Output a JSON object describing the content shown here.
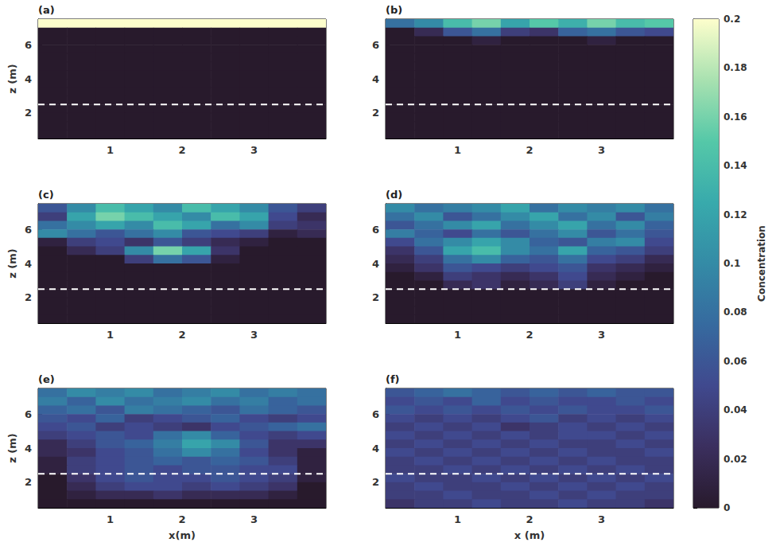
{
  "chart_data": {
    "type": "heatmap",
    "xlim": [
      0,
      4
    ],
    "ylim": [
      0.5,
      7.5
    ],
    "xticks": [
      1,
      2,
      3
    ],
    "yticks": [
      2,
      4,
      6
    ],
    "x_edges": [
      0,
      0.4,
      0.8,
      1.2,
      1.6,
      2,
      2.4,
      2.8,
      3.2,
      3.6,
      4
    ],
    "z_edges": [
      7.5,
      7,
      6.5,
      6,
      5.5,
      5,
      4.5,
      4,
      3.5,
      3,
      2.5,
      2,
      1.5,
      1,
      0.5
    ],
    "dashed_line_z": 2.5,
    "colorbar": {
      "title": "Concentration",
      "range": [
        0,
        0.2
      ],
      "ticks": [
        0,
        0.02,
        0.04,
        0.06,
        0.08,
        0.1,
        0.12,
        0.14,
        0.16,
        0.18,
        0.2
      ],
      "colors": [
        "#281a2c",
        "#3b2f5e",
        "#40498e",
        "#366a9f",
        "#348ba6",
        "#38aaac",
        "#55c8a8",
        "#a8e1b0",
        "#fdfecc"
      ]
    },
    "panels": [
      {
        "label": "(a)",
        "y_label": "z (m)",
        "cells": [
          [
            0.2,
            0.2,
            0.2,
            0.2,
            0.2,
            0.2,
            0.2,
            0.2,
            0.2,
            0.2
          ],
          [
            0,
            0,
            0,
            0,
            0,
            0,
            0,
            0,
            0,
            0
          ],
          [
            0,
            0,
            0,
            0,
            0,
            0,
            0,
            0,
            0,
            0
          ],
          [
            0,
            0,
            0,
            0,
            0,
            0,
            0,
            0,
            0,
            0
          ],
          [
            0,
            0,
            0,
            0,
            0,
            0,
            0,
            0,
            0,
            0
          ],
          [
            0,
            0,
            0,
            0,
            0,
            0,
            0,
            0,
            0,
            0
          ],
          [
            0,
            0,
            0,
            0,
            0,
            0,
            0,
            0,
            0,
            0
          ],
          [
            0,
            0,
            0,
            0,
            0,
            0,
            0,
            0,
            0,
            0
          ],
          [
            0,
            0,
            0,
            0,
            0,
            0,
            0,
            0,
            0,
            0
          ],
          [
            0,
            0,
            0,
            0,
            0,
            0,
            0,
            0,
            0,
            0
          ],
          [
            0,
            0,
            0,
            0,
            0,
            0,
            0,
            0,
            0,
            0
          ],
          [
            0,
            0,
            0,
            0,
            0,
            0,
            0,
            0,
            0,
            0
          ],
          [
            0,
            0,
            0,
            0,
            0,
            0,
            0,
            0,
            0,
            0
          ],
          [
            0,
            0,
            0,
            0,
            0,
            0,
            0,
            0,
            0,
            0
          ]
        ]
      },
      {
        "label": "(b)",
        "cells": [
          [
            0.08,
            0.1,
            0.14,
            0.16,
            0.12,
            0.15,
            0.13,
            0.16,
            0.14,
            0.15
          ],
          [
            0,
            0.02,
            0.06,
            0.08,
            0.04,
            0.03,
            0.07,
            0.08,
            0.06,
            0.05
          ],
          [
            0,
            0,
            0,
            0.01,
            0,
            0,
            0,
            0.01,
            0,
            0
          ],
          [
            0,
            0,
            0,
            0,
            0,
            0,
            0,
            0,
            0,
            0
          ],
          [
            0,
            0,
            0,
            0,
            0,
            0,
            0,
            0,
            0,
            0
          ],
          [
            0,
            0,
            0,
            0,
            0,
            0,
            0,
            0,
            0,
            0
          ],
          [
            0,
            0,
            0,
            0,
            0,
            0,
            0,
            0,
            0,
            0
          ],
          [
            0,
            0,
            0,
            0,
            0,
            0,
            0,
            0,
            0,
            0
          ],
          [
            0,
            0,
            0,
            0,
            0,
            0,
            0,
            0,
            0,
            0
          ],
          [
            0,
            0,
            0,
            0,
            0,
            0,
            0,
            0,
            0,
            0
          ],
          [
            0,
            0,
            0,
            0,
            0,
            0,
            0,
            0,
            0,
            0
          ],
          [
            0,
            0,
            0,
            0,
            0,
            0,
            0,
            0,
            0,
            0
          ],
          [
            0,
            0,
            0,
            0,
            0,
            0,
            0,
            0,
            0,
            0
          ],
          [
            0,
            0,
            0,
            0,
            0,
            0,
            0,
            0,
            0,
            0
          ]
        ]
      },
      {
        "label": "(c)",
        "y_label": "z (m)",
        "cells": [
          [
            0.06,
            0.1,
            0.14,
            0.12,
            0.1,
            0.14,
            0.12,
            0.1,
            0.06,
            0.04
          ],
          [
            0.04,
            0.12,
            0.16,
            0.14,
            0.12,
            0.1,
            0.14,
            0.12,
            0.05,
            0.02
          ],
          [
            0.08,
            0.1,
            0.12,
            0.1,
            0.14,
            0.12,
            0.08,
            0.1,
            0.04,
            0.03
          ],
          [
            0.1,
            0.08,
            0.06,
            0.08,
            0.1,
            0.06,
            0.05,
            0.04,
            0.01,
            0.02
          ],
          [
            0.01,
            0.04,
            0.05,
            0.03,
            0.06,
            0.04,
            0.02,
            0.01,
            0,
            0
          ],
          [
            0,
            0.02,
            0.04,
            0.1,
            0.16,
            0.12,
            0.03,
            0,
            0,
            0
          ],
          [
            0,
            0,
            0,
            0.04,
            0.08,
            0.06,
            0.01,
            0,
            0,
            0
          ],
          [
            0,
            0,
            0,
            0,
            0,
            0,
            0,
            0,
            0,
            0
          ],
          [
            0,
            0,
            0,
            0,
            0,
            0,
            0,
            0,
            0,
            0
          ],
          [
            0,
            0,
            0,
            0,
            0,
            0,
            0,
            0,
            0,
            0
          ],
          [
            0,
            0,
            0,
            0,
            0,
            0,
            0,
            0,
            0,
            0
          ],
          [
            0,
            0,
            0,
            0,
            0,
            0,
            0,
            0,
            0,
            0
          ],
          [
            0,
            0,
            0,
            0,
            0,
            0,
            0,
            0,
            0,
            0
          ],
          [
            0,
            0,
            0,
            0,
            0,
            0,
            0,
            0,
            0,
            0
          ]
        ]
      },
      {
        "label": "(d)",
        "cells": [
          [
            0.1,
            0.08,
            0.09,
            0.1,
            0.12,
            0.08,
            0.1,
            0.09,
            0.1,
            0.08
          ],
          [
            0.08,
            0.1,
            0.06,
            0.08,
            0.1,
            0.12,
            0.08,
            0.1,
            0.06,
            0.09
          ],
          [
            0.06,
            0.08,
            0.1,
            0.12,
            0.08,
            0.1,
            0.12,
            0.08,
            0.1,
            0.07
          ],
          [
            0.09,
            0.07,
            0.05,
            0.08,
            0.06,
            0.08,
            0.1,
            0.06,
            0.08,
            0.06
          ],
          [
            0.05,
            0.08,
            0.1,
            0.12,
            0.1,
            0.07,
            0.06,
            0.09,
            0.1,
            0.05
          ],
          [
            0.03,
            0.06,
            0.12,
            0.14,
            0.1,
            0.08,
            0.12,
            0.07,
            0.06,
            0.04
          ],
          [
            0.02,
            0.04,
            0.08,
            0.1,
            0.07,
            0.06,
            0.08,
            0.05,
            0.04,
            0.02
          ],
          [
            0.01,
            0.03,
            0.06,
            0.05,
            0.04,
            0.05,
            0.06,
            0.03,
            0.02,
            0.01
          ],
          [
            0,
            0.01,
            0.04,
            0.03,
            0.02,
            0.03,
            0.05,
            0.02,
            0.01,
            0
          ],
          [
            0,
            0,
            0.02,
            0.03,
            0.01,
            0.02,
            0.04,
            0.01,
            0,
            0
          ],
          [
            0,
            0,
            0,
            0,
            0,
            0,
            0,
            0,
            0,
            0
          ],
          [
            0,
            0,
            0,
            0,
            0,
            0,
            0,
            0,
            0,
            0
          ],
          [
            0,
            0,
            0,
            0,
            0,
            0,
            0,
            0,
            0,
            0
          ],
          [
            0,
            0,
            0,
            0,
            0,
            0,
            0,
            0,
            0,
            0
          ]
        ]
      },
      {
        "label": "(e)",
        "y_label": "z (m)",
        "x_label": "x(m)",
        "cells": [
          [
            0.08,
            0.1,
            0.09,
            0.1,
            0.08,
            0.09,
            0.1,
            0.08,
            0.09,
            0.08
          ],
          [
            0.09,
            0.07,
            0.1,
            0.08,
            0.09,
            0.1,
            0.08,
            0.09,
            0.07,
            0.08
          ],
          [
            0.07,
            0.08,
            0.06,
            0.09,
            0.08,
            0.07,
            0.06,
            0.08,
            0.07,
            0.06
          ],
          [
            0.06,
            0.05,
            0.07,
            0.04,
            0.05,
            0.06,
            0.07,
            0.05,
            0.04,
            0.05
          ],
          [
            0.05,
            0.06,
            0.04,
            0.05,
            0.04,
            0.03,
            0.05,
            0.06,
            0.07,
            0.08
          ],
          [
            0.04,
            0.05,
            0.06,
            0.05,
            0.08,
            0.1,
            0.07,
            0.05,
            0.04,
            0.05
          ],
          [
            0.02,
            0.04,
            0.06,
            0.07,
            0.09,
            0.12,
            0.1,
            0.06,
            0.03,
            0.03
          ],
          [
            0.02,
            0.03,
            0.05,
            0.06,
            0.08,
            0.1,
            0.08,
            0.05,
            0.03,
            0.01
          ],
          [
            0.01,
            0.04,
            0.05,
            0.06,
            0.07,
            0.06,
            0.07,
            0.06,
            0.04,
            0.01
          ],
          [
            0.01,
            0.04,
            0.05,
            0.06,
            0.05,
            0.06,
            0.06,
            0.05,
            0.05,
            0.01
          ],
          [
            0,
            0.03,
            0.05,
            0.06,
            0.05,
            0.05,
            0.06,
            0.05,
            0.04,
            0.01
          ],
          [
            0,
            0.02,
            0.04,
            0.05,
            0.05,
            0.04,
            0.05,
            0.04,
            0.03,
            0
          ],
          [
            0,
            0.01,
            0.02,
            0.02,
            0.03,
            0.02,
            0.02,
            0.02,
            0.01,
            0
          ],
          [
            0,
            0,
            0,
            0,
            0,
            0,
            0,
            0,
            0,
            0
          ]
        ]
      },
      {
        "label": "(f)",
        "x_label": "x (m)",
        "cells": [
          [
            0.06,
            0.07,
            0.08,
            0.07,
            0.06,
            0.07,
            0.06,
            0.07,
            0.06,
            0.06
          ],
          [
            0.05,
            0.06,
            0.05,
            0.07,
            0.05,
            0.06,
            0.05,
            0.05,
            0.06,
            0.05
          ],
          [
            0.06,
            0.05,
            0.06,
            0.05,
            0.06,
            0.05,
            0.06,
            0.05,
            0.05,
            0.06
          ],
          [
            0.05,
            0.04,
            0.05,
            0.04,
            0.05,
            0.06,
            0.04,
            0.05,
            0.04,
            0.05
          ],
          [
            0.04,
            0.05,
            0.04,
            0.05,
            0.03,
            0.04,
            0.05,
            0.04,
            0.05,
            0.04
          ],
          [
            0.05,
            0.04,
            0.05,
            0.04,
            0.05,
            0.04,
            0.05,
            0.05,
            0.04,
            0.05
          ],
          [
            0.04,
            0.05,
            0.04,
            0.05,
            0.04,
            0.05,
            0.04,
            0.04,
            0.05,
            0.04
          ],
          [
            0.05,
            0.04,
            0.05,
            0.04,
            0.05,
            0.04,
            0.05,
            0.04,
            0.04,
            0.05
          ],
          [
            0.04,
            0.05,
            0.04,
            0.05,
            0.04,
            0.05,
            0.04,
            0.05,
            0.04,
            0.04
          ],
          [
            0.04,
            0.04,
            0.05,
            0.04,
            0.05,
            0.04,
            0.05,
            0.04,
            0.05,
            0.04
          ],
          [
            0.05,
            0.04,
            0.04,
            0.05,
            0.04,
            0.05,
            0.04,
            0.05,
            0.04,
            0.05
          ],
          [
            0.04,
            0.05,
            0.04,
            0.04,
            0.05,
            0.04,
            0.05,
            0.04,
            0.05,
            0.04
          ],
          [
            0.04,
            0.04,
            0.05,
            0.04,
            0.04,
            0.05,
            0.04,
            0.05,
            0.04,
            0.04
          ],
          [
            0.03,
            0.04,
            0.04,
            0.05,
            0.04,
            0.04,
            0.05,
            0.04,
            0.04,
            0.03
          ]
        ]
      }
    ]
  }
}
